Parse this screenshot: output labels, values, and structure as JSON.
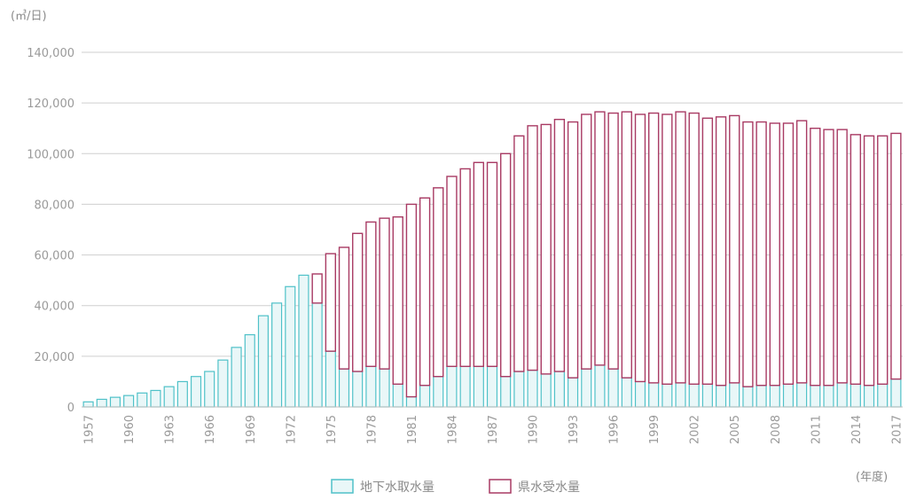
{
  "chart_data": {
    "type": "bar",
    "stacked": true,
    "y_unit_label": "(㎥/日)",
    "x_unit_label": "(年度)",
    "ylim": [
      0,
      140000
    ],
    "y_ticks": [
      "140,000",
      "120,000",
      "100,000",
      "80,000",
      "60,000",
      "40,000",
      "20,000",
      "0"
    ],
    "x_tick_labels": [
      "1957",
      "1960",
      "1963",
      "1966",
      "1969",
      "1972",
      "1975",
      "1978",
      "1981",
      "1984",
      "1987",
      "1990",
      "1993",
      "1996",
      "1999",
      "2002",
      "2005",
      "2008",
      "2011",
      "2014",
      "2017"
    ],
    "grid": true,
    "legend_position": "bottom",
    "categories": [
      "1957",
      "1958",
      "1959",
      "1960",
      "1961",
      "1962",
      "1963",
      "1964",
      "1965",
      "1966",
      "1967",
      "1968",
      "1969",
      "1970",
      "1971",
      "1972",
      "1973",
      "1974",
      "1975",
      "1976",
      "1977",
      "1978",
      "1979",
      "1980",
      "1981",
      "1982",
      "1983",
      "1984",
      "1985",
      "1986",
      "1987",
      "1988",
      "1989",
      "1990",
      "1991",
      "1992",
      "1993",
      "1994",
      "1995",
      "1996",
      "1997",
      "1998",
      "1999",
      "2000",
      "2001",
      "2002",
      "2003",
      "2004",
      "2005",
      "2006",
      "2007",
      "2008",
      "2009",
      "2010",
      "2011",
      "2012",
      "2013",
      "2014",
      "2015",
      "2016",
      "2017"
    ],
    "series": [
      {
        "name": "地下水取水量",
        "color": "#4fc1c8",
        "fill": "#e9f7f8",
        "values": [
          2000,
          3000,
          3800,
          4500,
          5500,
          6500,
          8000,
          10000,
          12000,
          14000,
          18500,
          23500,
          28500,
          36000,
          41000,
          47500,
          52000,
          41000,
          22000,
          15000,
          14000,
          16000,
          15000,
          9000,
          4000,
          8500,
          12000,
          16000,
          16000,
          16000,
          16000,
          12000,
          14000,
          14500,
          13000,
          14000,
          11500,
          15000,
          16500,
          15000,
          11500,
          10000,
          9500,
          9000,
          9500,
          9000,
          9000,
          8500,
          9500,
          8000,
          8500,
          8500,
          9000,
          9500,
          8500,
          8500,
          9500,
          9000,
          8500,
          9000,
          11000
        ]
      },
      {
        "name": "県水受水量",
        "color": "#a83a63",
        "fill": "#ffffff",
        "values": [
          0,
          0,
          0,
          0,
          0,
          0,
          0,
          0,
          0,
          0,
          0,
          0,
          0,
          0,
          0,
          0,
          0,
          11500,
          38500,
          48000,
          54500,
          57000,
          59500,
          66000,
          76000,
          74000,
          74500,
          75000,
          78000,
          80500,
          80500,
          88000,
          93000,
          96500,
          98500,
          99500,
          101000,
          100500,
          100000,
          101000,
          105000,
          105500,
          106500,
          106500,
          107000,
          107000,
          105000,
          106000,
          105500,
          104500,
          104000,
          103500,
          103000,
          103500,
          101500,
          101000,
          100000,
          98500,
          98500,
          98000,
          97000
        ]
      }
    ]
  }
}
